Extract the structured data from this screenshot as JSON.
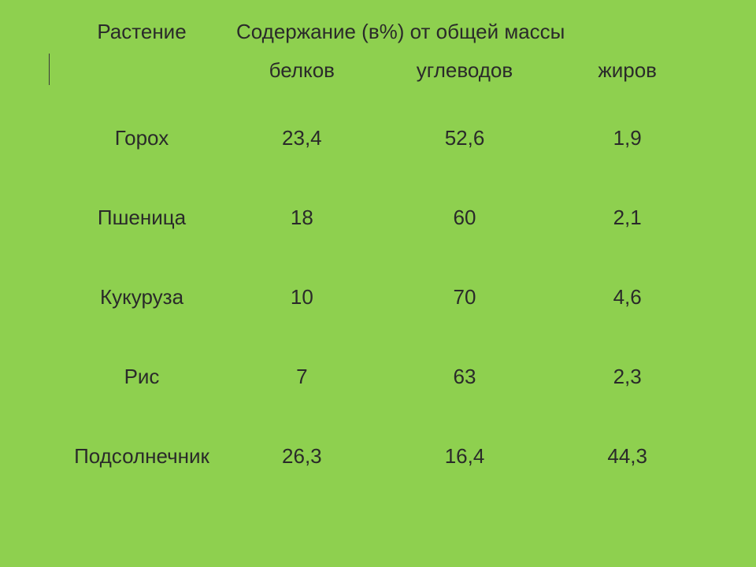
{
  "table": {
    "type": "table",
    "background_color": "#8ed04f",
    "text_color": "#2a2a2a",
    "font_family": "Arial, sans-serif",
    "font_size_pt": 20,
    "header": {
      "plant_label": "Растение",
      "content_label": "Содержание  (в%) от общей массы"
    },
    "subheader": {
      "proteins": "белков",
      "carbs": "углеводов",
      "fats": "жиров"
    },
    "columns": [
      "Растение",
      "белков",
      "углеводов",
      "жиров"
    ],
    "rows": [
      {
        "plant": "Горох",
        "proteins": "23,4",
        "carbs": "52,6",
        "fats": "1,9"
      },
      {
        "plant": "Пшеница",
        "proteins": "18",
        "carbs": "60",
        "fats": "2,1"
      },
      {
        "plant": "Кукуруза",
        "proteins": "10",
        "carbs": "70",
        "fats": "4,6"
      },
      {
        "plant": "Рис",
        "proteins": "7",
        "carbs": "63",
        "fats": "2,3"
      },
      {
        "plant": "Подсолнечник",
        "proteins": "26,3",
        "carbs": "16,4",
        "fats": "44,3"
      }
    ],
    "divider_color": "#3a3a3a"
  }
}
